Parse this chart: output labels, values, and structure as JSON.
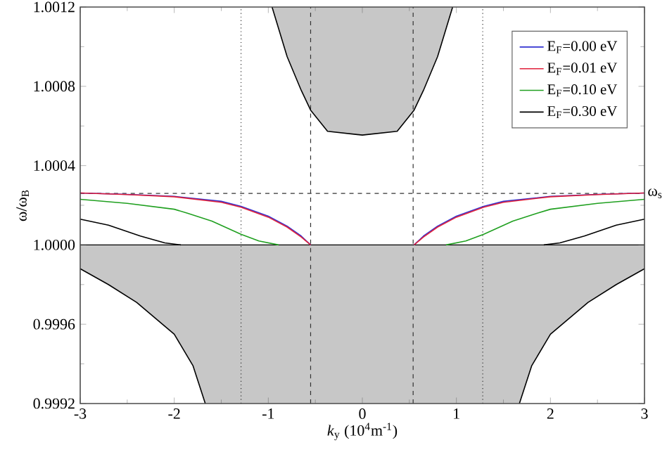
{
  "chart_data": {
    "type": "line",
    "xlabel": "*k*$_{y}$ (10$^{4}$m$^{-1}$)",
    "ylabel": "ω/ω$_{B}$",
    "xlim": [
      -3,
      3
    ],
    "ylim": [
      0.9992,
      1.0012
    ],
    "xticks": [
      -3,
      -2,
      -1,
      0,
      1,
      2,
      3
    ],
    "yticks": [
      {
        "value": 0.9992,
        "label": "0.9992"
      },
      {
        "value": 0.9996,
        "label": "0.9996"
      },
      {
        "value": 1.0,
        "label": "1.0000"
      },
      {
        "value": 1.0004,
        "label": "1.0004"
      },
      {
        "value": 1.0008,
        "label": "1.0008"
      },
      {
        "value": 1.0012,
        "label": "1.0012"
      }
    ],
    "legend": "top right",
    "grid": false,
    "marker": "none",
    "series": [
      {
        "type": "line",
        "color": "#000000",
        "x": [
          -0.96,
          -0.8,
          -0.65,
          -0.55,
          -0.37,
          0,
          0.37,
          0.55,
          0.65,
          0.8,
          0.96
        ],
        "values": [
          1.0012,
          1.00095,
          1.00078,
          1.00068,
          1.000573,
          1.000554,
          1.000573,
          1.00068,
          1.00078,
          1.00095,
          1.0012
        ],
        "lower": [
          1.0012,
          1.00095,
          1.00078,
          1.00068,
          1.000573,
          1.000554,
          1.000573,
          1.00068,
          1.00078,
          1.00095,
          1.0012
        ],
        "upper": [
          1.0012,
          1.0012,
          1.0012,
          1.0012,
          1.0012,
          1.0012,
          1.0012,
          1.0012,
          1.0012,
          1.0012,
          1.0012
        ]
      },
      {
        "type": "line",
        "color": "#000000",
        "x": [
          -3,
          -2.7,
          -2.4,
          -2,
          -1.8,
          -1.67,
          -1,
          0,
          1,
          1.67,
          1.8,
          2,
          2.4,
          2.7,
          3
        ],
        "values": [
          0.99988,
          0.9998,
          0.99971,
          0.99955,
          0.99939,
          0.9992,
          null,
          null,
          null,
          0.9992,
          0.99939,
          0.99955,
          0.99971,
          0.9998,
          0.99988
        ],
        "lower": [
          0.99988,
          0.9998,
          0.99971,
          0.99955,
          0.99939,
          0.9992,
          0.9992,
          0.9992,
          0.9992,
          0.9992,
          0.99939,
          0.99955,
          0.99971,
          0.9998,
          0.99988
        ],
        "upper": [
          1.0,
          1.0,
          1.0,
          1.0,
          1.0,
          1.0,
          1.0,
          1.0,
          1.0,
          1.0,
          1.0,
          1.0,
          1.0,
          1.0,
          1.0
        ]
      },
      {
        "name": "E$_{F}$=0.00 eV",
        "color": "#3030d0",
        "x": [
          -3,
          -2.5,
          -2,
          -1.5,
          -1.29,
          -1,
          -0.8,
          -0.65,
          -0.55,
          0,
          0.55,
          0.65,
          0.8,
          1,
          1.29,
          1.5,
          2,
          2.5,
          3
        ],
        "values": [
          1.000262,
          1.000255,
          1.000245,
          1.00022,
          1.000195,
          1.000145,
          1.000095,
          1.000045,
          1.0,
          null,
          1.0,
          1.000045,
          1.000095,
          1.000145,
          1.000195,
          1.00022,
          1.000245,
          1.000255,
          1.000262
        ]
      },
      {
        "name": "E$_{F}$=0.01 eV",
        "color": "#e0203a",
        "x": [
          -3,
          -2.5,
          -2,
          -1.5,
          -1.29,
          -1,
          -0.8,
          -0.65,
          -0.55,
          0,
          0.55,
          0.65,
          0.8,
          1,
          1.29,
          1.5,
          2,
          2.5,
          3
        ],
        "values": [
          1.000262,
          1.000254,
          1.000243,
          1.000215,
          1.00019,
          1.00014,
          1.00009,
          1.00004,
          1.0,
          null,
          1.0,
          1.00004,
          1.00009,
          1.00014,
          1.00019,
          1.000215,
          1.000243,
          1.000254,
          1.000262
        ]
      },
      {
        "name": "E$_{F}$=0.10 eV",
        "color": "#20a020",
        "x": [
          -3,
          -2.5,
          -2,
          -1.86,
          -1.6,
          -1.29,
          -1.1,
          -0.89,
          0,
          0.89,
          1.1,
          1.29,
          1.6,
          1.86,
          2,
          2.5,
          3
        ],
        "values": [
          1.00023,
          1.00021,
          1.00018,
          1.00016,
          1.00012,
          1.000054,
          1.00002,
          1.0,
          null,
          1.0,
          1.00002,
          1.000054,
          1.00012,
          1.00016,
          1.00018,
          1.00021,
          1.00023
        ]
      },
      {
        "name": "E$_{F}$=0.30 eV",
        "color": "#000000",
        "x": [
          -3,
          -2.7,
          -2.36,
          -2.1,
          -1.93,
          0,
          1.93,
          2.1,
          2.36,
          2.7,
          3
        ],
        "values": [
          1.00013,
          1.0001,
          1.000045,
          1.00001,
          1.0,
          null,
          1.0,
          1.00001,
          1.000045,
          1.0001,
          1.00013
        ]
      }
    ],
    "ref_lines": [
      {
        "axis": "y",
        "value": 1.0,
        "color": "#000000",
        "line_style": "solid"
      },
      {
        "axis": "y",
        "value": 1.00026,
        "label": "ω$_{s}$",
        "color": "#333333",
        "line_style": "dashed"
      },
      {
        "axis": "x",
        "value": -1.29,
        "color": "#333333",
        "line_style": "dotted"
      },
      {
        "axis": "x",
        "value": -0.55,
        "color": "#333333",
        "line_style": "dashed"
      },
      {
        "axis": "x",
        "value": 0.54,
        "color": "#333333",
        "line_style": "dashed"
      },
      {
        "axis": "x",
        "value": 1.28,
        "color": "#333333",
        "line_style": "dotted"
      }
    ]
  }
}
